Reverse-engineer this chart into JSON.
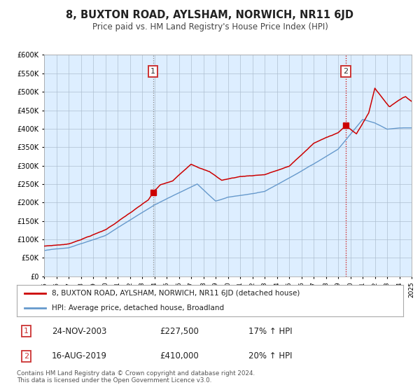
{
  "title": "8, BUXTON ROAD, AYLSHAM, NORWICH, NR11 6JD",
  "subtitle": "Price paid vs. HM Land Registry's House Price Index (HPI)",
  "legend_line1": "8, BUXTON ROAD, AYLSHAM, NORWICH, NR11 6JD (detached house)",
  "legend_line2": "HPI: Average price, detached house, Broadland",
  "sale1_date": "24-NOV-2003",
  "sale1_price": "£227,500",
  "sale1_hpi": "17% ↑ HPI",
  "sale2_date": "16-AUG-2019",
  "sale2_price": "£410,000",
  "sale2_hpi": "20% ↑ HPI",
  "footer": "Contains HM Land Registry data © Crown copyright and database right 2024.\nThis data is licensed under the Open Government Licence v3.0.",
  "red_color": "#cc0000",
  "blue_color": "#6699cc",
  "bg_color": "#ddeeff",
  "grid_color": "#aabbcc",
  "sale1_x": 2003.9,
  "sale1_y": 227500,
  "sale2_x": 2019.62,
  "sale2_y": 410000,
  "xmin": 1995,
  "xmax": 2025,
  "ymin": 0,
  "ymax": 600000,
  "yticks": [
    0,
    50000,
    100000,
    150000,
    200000,
    250000,
    300000,
    350000,
    400000,
    450000,
    500000,
    550000,
    600000
  ]
}
